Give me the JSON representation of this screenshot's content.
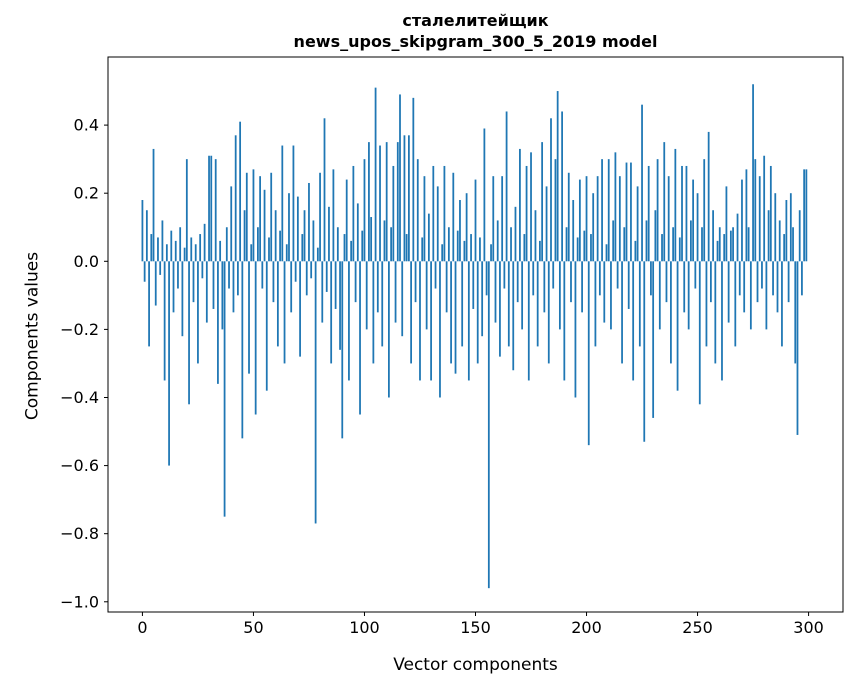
{
  "figure": {
    "title_line1": "сталелитейщик",
    "title_line2": "news_upos_skipgram_300_5_2019 model",
    "xlabel": "Vector components",
    "ylabel": "Components values"
  },
  "chart_data": {
    "type": "bar",
    "title": "сталелитейщик\nnews_upos_skipgram_300_5_2019 model",
    "xlabel": "Vector components",
    "ylabel": "Components values",
    "bar_color": "#1f77b4",
    "grid": false,
    "legend": false,
    "xlim": [
      -15.5,
      315.5
    ],
    "ylim": [
      -1.03,
      0.6
    ],
    "xticks": [
      0,
      50,
      100,
      150,
      200,
      250,
      300
    ],
    "xtick_labels": [
      "0",
      "50",
      "100",
      "150",
      "200",
      "250",
      "300"
    ],
    "yticks": [
      0.4,
      0.2,
      0.0,
      -0.2,
      -0.4,
      -0.6,
      -0.8,
      -1.0
    ],
    "ytick_labels": [
      "0.4",
      "0.2",
      "0.0",
      "−0.2",
      "−0.4",
      "−0.6",
      "−0.8",
      "−1.0"
    ],
    "x_start": 0,
    "bar_width_units": 0.8,
    "values": [
      0.18,
      -0.06,
      0.15,
      -0.25,
      0.08,
      0.33,
      -0.13,
      0.07,
      -0.04,
      0.12,
      -0.35,
      0.05,
      -0.6,
      0.09,
      -0.15,
      0.06,
      -0.08,
      0.1,
      -0.22,
      0.04,
      0.3,
      -0.42,
      0.07,
      -0.12,
      0.05,
      -0.3,
      0.08,
      -0.05,
      0.11,
      -0.18,
      0.31,
      0.31,
      -0.14,
      0.3,
      -0.36,
      0.06,
      -0.2,
      -0.75,
      0.1,
      -0.08,
      0.22,
      -0.15,
      0.37,
      -0.1,
      0.41,
      -0.52,
      0.15,
      0.26,
      -0.33,
      0.05,
      0.27,
      -0.45,
      0.1,
      0.25,
      -0.08,
      0.21,
      -0.38,
      0.07,
      0.26,
      -0.12,
      0.15,
      -0.25,
      0.09,
      0.34,
      -0.3,
      0.05,
      0.2,
      -0.15,
      0.34,
      -0.06,
      0.19,
      -0.28,
      0.08,
      0.15,
      -0.1,
      0.23,
      -0.05,
      0.12,
      -0.77,
      0.04,
      0.26,
      -0.18,
      0.42,
      -0.09,
      0.16,
      -0.3,
      0.27,
      -0.14,
      0.1,
      -0.26,
      -0.52,
      0.08,
      0.24,
      -0.35,
      0.06,
      0.28,
      -0.12,
      0.17,
      -0.45,
      0.09,
      0.3,
      -0.2,
      0.35,
      0.13,
      -0.3,
      0.51,
      -0.15,
      0.34,
      -0.25,
      0.12,
      0.35,
      -0.4,
      0.1,
      0.28,
      -0.18,
      0.35,
      0.49,
      -0.22,
      0.37,
      0.08,
      0.37,
      -0.3,
      0.48,
      -0.12,
      0.3,
      -0.35,
      0.07,
      0.25,
      -0.2,
      0.14,
      -0.35,
      0.28,
      -0.08,
      0.22,
      -0.4,
      0.05,
      0.28,
      -0.15,
      0.1,
      -0.3,
      0.26,
      -0.33,
      0.09,
      0.18,
      -0.25,
      0.06,
      0.2,
      -0.35,
      0.08,
      -0.14,
      0.24,
      -0.3,
      0.07,
      -0.22,
      0.39,
      -0.1,
      -0.96,
      0.05,
      0.25,
      -0.18,
      0.12,
      -0.28,
      0.25,
      -0.08,
      0.44,
      -0.25,
      0.1,
      -0.32,
      0.16,
      -0.12,
      0.33,
      -0.2,
      0.08,
      0.28,
      -0.35,
      0.32,
      -0.1,
      0.15,
      -0.25,
      0.06,
      0.35,
      -0.15,
      0.22,
      -0.3,
      0.42,
      -0.08,
      0.3,
      0.5,
      -0.2,
      0.44,
      -0.35,
      0.1,
      0.26,
      -0.12,
      0.18,
      -0.4,
      0.07,
      0.24,
      -0.15,
      0.09,
      0.25,
      -0.54,
      0.08,
      0.2,
      -0.25,
      0.25,
      -0.1,
      0.3,
      -0.18,
      0.05,
      0.3,
      -0.2,
      0.12,
      0.32,
      -0.08,
      0.25,
      -0.3,
      0.1,
      0.29,
      -0.14,
      0.29,
      -0.35,
      0.06,
      0.22,
      -0.25,
      0.46,
      -0.53,
      0.12,
      0.28,
      -0.1,
      -0.46,
      0.15,
      0.3,
      -0.2,
      0.08,
      0.35,
      -0.12,
      0.25,
      -0.3,
      0.1,
      0.33,
      -0.38,
      0.07,
      0.28,
      -0.15,
      0.28,
      -0.2,
      0.12,
      0.24,
      -0.08,
      0.2,
      -0.42,
      0.1,
      0.3,
      -0.25,
      0.38,
      -0.12,
      0.15,
      -0.3,
      0.06,
      0.1,
      -0.35,
      0.08,
      0.22,
      -0.18,
      0.09,
      0.1,
      -0.25,
      0.14,
      -0.1,
      0.24,
      -0.15,
      0.27,
      0.1,
      -0.2,
      0.52,
      0.3,
      -0.12,
      0.25,
      -0.08,
      0.31,
      -0.2,
      0.15,
      0.28,
      -0.1,
      0.2,
      -0.15,
      0.12,
      -0.25,
      0.08,
      0.18,
      -0.12,
      0.2,
      0.1,
      -0.3,
      -0.51,
      0.15,
      -0.1,
      0.27,
      0.27
    ]
  }
}
